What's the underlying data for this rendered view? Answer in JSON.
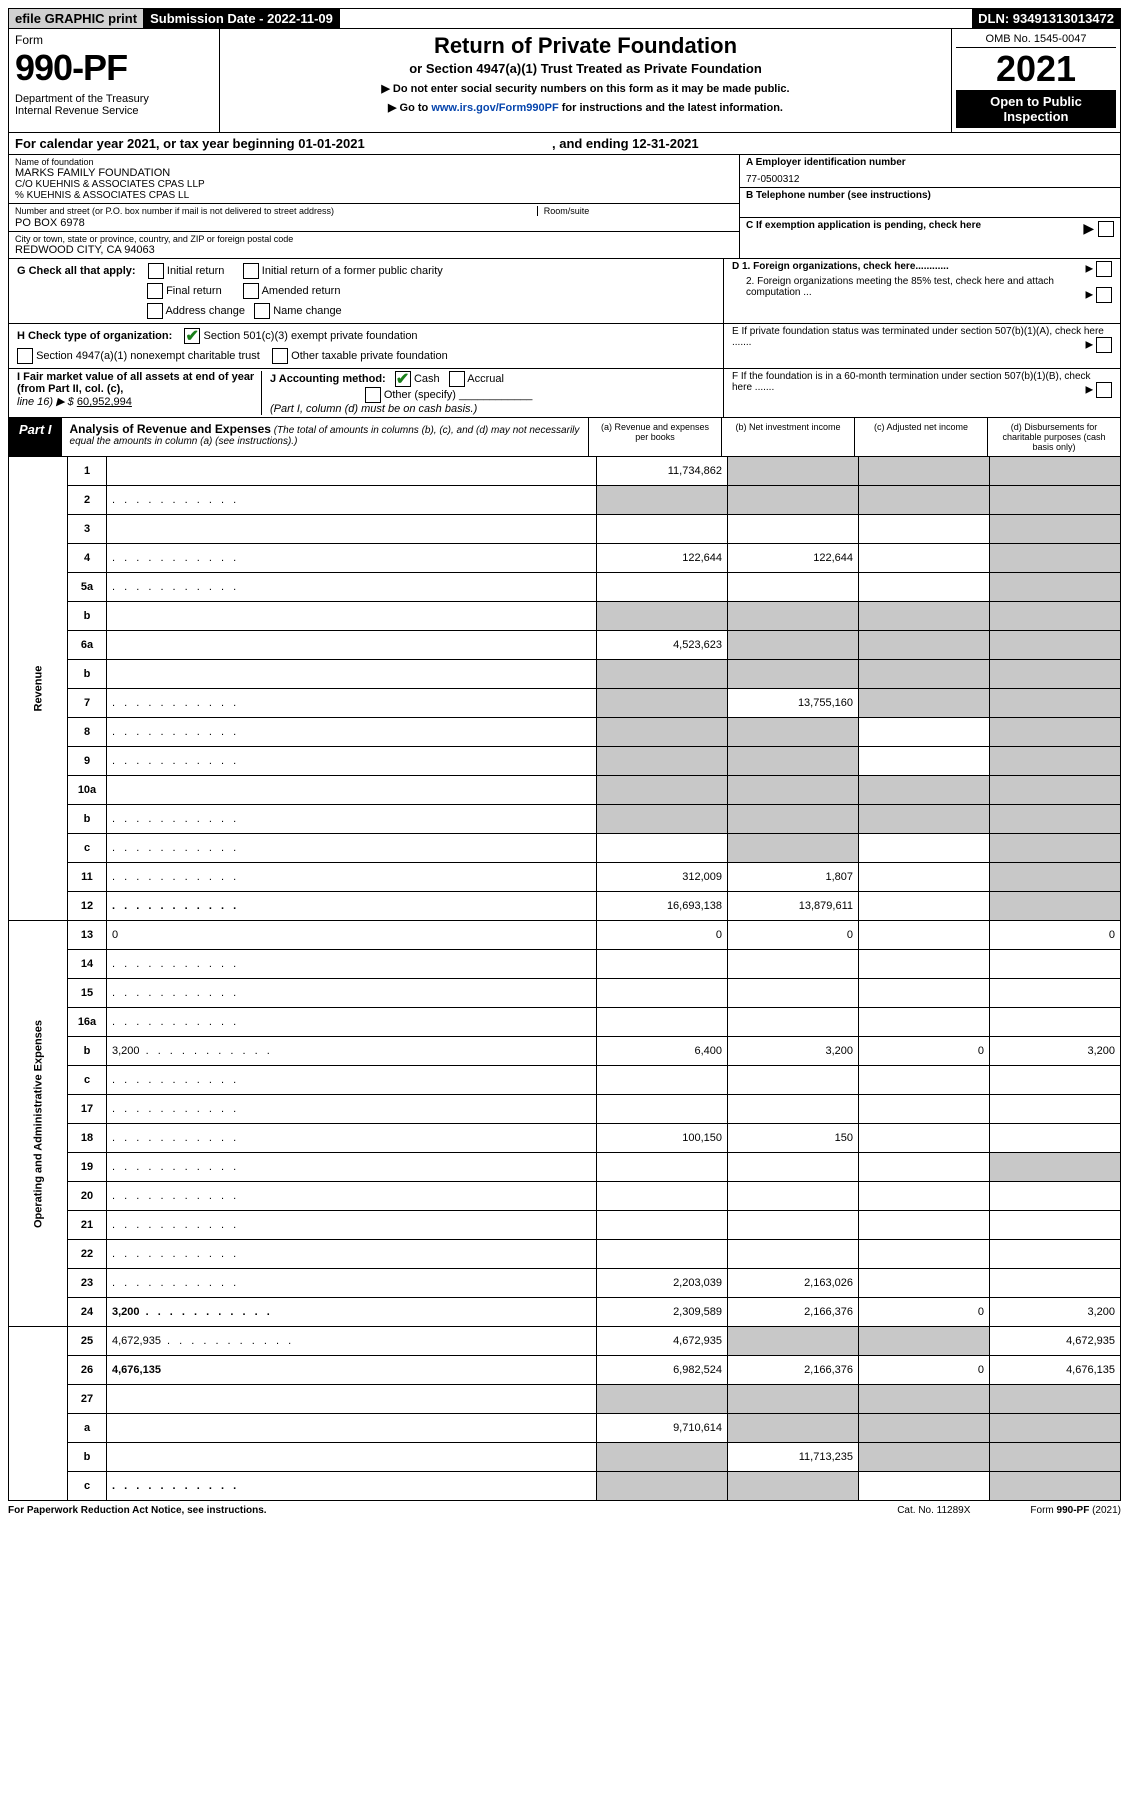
{
  "top": {
    "efile": "efile GRAPHIC print",
    "subdate": "Submission Date - 2022-11-09",
    "dln": "DLN: 93491313013472"
  },
  "header": {
    "form_word": "Form",
    "form_no": "990-PF",
    "dept": "Department of the Treasury\nInternal Revenue Service",
    "title": "Return of Private Foundation",
    "subtitle": "or Section 4947(a)(1) Trust Treated as Private Foundation",
    "note1": "▶ Do not enter social security numbers on this form as it may be made public.",
    "note2_pre": "▶ Go to ",
    "note2_link": "www.irs.gov/Form990PF",
    "note2_post": " for instructions and the latest information.",
    "omb": "OMB No. 1545-0047",
    "year": "2021",
    "open1": "Open to Public",
    "open2": "Inspection"
  },
  "caly": {
    "pre": "For calendar year 2021, or tax year beginning 01-01-2021",
    "end": ", and ending 12-31-2021"
  },
  "id": {
    "name_lbl": "Name of foundation",
    "name1": "MARKS FAMILY FOUNDATION",
    "name2": "C/O KUEHNIS & ASSOCIATES CPAS LLP",
    "name3": "% KUEHNIS & ASSOCIATES CPAS LL",
    "addr_lbl": "Number and street (or P.O. box number if mail is not delivered to street address)",
    "addr": "PO BOX 6978",
    "room_lbl": "Room/suite",
    "city_lbl": "City or town, state or province, country, and ZIP or foreign postal code",
    "city": "REDWOOD CITY, CA  94063",
    "a_lbl": "A Employer identification number",
    "ein": "77-0500312",
    "b_lbl": "B Telephone number (see instructions)",
    "c_lbl": "C If exemption application is pending, check here",
    "g_lbl": "G Check all that apply:",
    "g_initial": "Initial return",
    "g_initial_pub": "Initial return of a former public charity",
    "g_final": "Final return",
    "g_amended": "Amended return",
    "g_addr": "Address change",
    "g_name": "Name change",
    "d1": "D 1. Foreign organizations, check here............",
    "d2": "2. Foreign organizations meeting the 85% test, check here and attach computation ...",
    "h_lbl": "H Check type of organization:",
    "h_501": "Section 501(c)(3) exempt private foundation",
    "h_4947": "Section 4947(a)(1) nonexempt charitable trust",
    "h_other": "Other taxable private foundation",
    "e_lbl": "E  If private foundation status was terminated under section 507(b)(1)(A), check here .......",
    "i_lbl": "I Fair market value of all assets at end of year (from Part II, col. (c),",
    "i_line": "line 16) ▶ $",
    "i_val": "60,952,994",
    "j_lbl": "J Accounting method:",
    "j_cash": "Cash",
    "j_accrual": "Accrual",
    "j_other": "Other (specify)",
    "j_note": "(Part I, column (d) must be on cash basis.)",
    "f_lbl": "F  If the foundation is in a 60-month termination under section 507(b)(1)(B), check here ......."
  },
  "part1": {
    "tag": "Part I",
    "title": "Analysis of Revenue and Expenses",
    "note": "(The total of amounts in columns (b), (c), and (d) may not necessarily equal the amounts in column (a) (see instructions).)",
    "col_a": "(a)    Revenue and expenses per books",
    "col_b": "(b)    Net investment income",
    "col_c": "(c)    Adjusted net income",
    "col_d": "(d)    Disbursements for charitable purposes (cash basis only)"
  },
  "side": {
    "rev": "Revenue",
    "exp": "Operating and Administrative Expenses"
  },
  "rows": [
    {
      "n": "1",
      "d": "",
      "a": "11,734,862",
      "b": "",
      "c": "",
      "ga": false,
      "gb": true,
      "gc": true,
      "gd": true
    },
    {
      "n": "2",
      "d": "",
      "a": "",
      "b": "",
      "c": "",
      "ga": true,
      "gb": true,
      "gc": true,
      "gd": true,
      "dots": true
    },
    {
      "n": "3",
      "d": "",
      "a": "",
      "b": "",
      "c": "",
      "ga": false,
      "gb": false,
      "gc": false,
      "gd": true
    },
    {
      "n": "4",
      "d": "",
      "a": "122,644",
      "b": "122,644",
      "c": "",
      "ga": false,
      "gb": false,
      "gc": false,
      "gd": true,
      "dots": true
    },
    {
      "n": "5a",
      "d": "",
      "a": "",
      "b": "",
      "c": "",
      "ga": false,
      "gb": false,
      "gc": false,
      "gd": true,
      "dots": true
    },
    {
      "n": "b",
      "d": "",
      "a": "",
      "b": "",
      "c": "",
      "ga": true,
      "gb": true,
      "gc": true,
      "gd": true
    },
    {
      "n": "6a",
      "d": "",
      "a": "4,523,623",
      "b": "",
      "c": "",
      "ga": false,
      "gb": true,
      "gc": true,
      "gd": true
    },
    {
      "n": "b",
      "d": "",
      "a": "",
      "b": "",
      "c": "",
      "ga": true,
      "gb": true,
      "gc": true,
      "gd": true
    },
    {
      "n": "7",
      "d": "",
      "a": "",
      "b": "13,755,160",
      "c": "",
      "ga": true,
      "gb": false,
      "gc": true,
      "gd": true,
      "dots": true
    },
    {
      "n": "8",
      "d": "",
      "a": "",
      "b": "",
      "c": "",
      "ga": true,
      "gb": true,
      "gc": false,
      "gd": true,
      "dots": true
    },
    {
      "n": "9",
      "d": "",
      "a": "",
      "b": "",
      "c": "",
      "ga": true,
      "gb": true,
      "gc": false,
      "gd": true,
      "dots": true
    },
    {
      "n": "10a",
      "d": "",
      "a": "",
      "b": "",
      "c": "",
      "ga": true,
      "gb": true,
      "gc": true,
      "gd": true
    },
    {
      "n": "b",
      "d": "",
      "a": "",
      "b": "",
      "c": "",
      "ga": true,
      "gb": true,
      "gc": true,
      "gd": true,
      "dots": true
    },
    {
      "n": "c",
      "d": "",
      "a": "",
      "b": "",
      "c": "",
      "ga": false,
      "gb": true,
      "gc": false,
      "gd": true,
      "dots": true
    },
    {
      "n": "11",
      "d": "",
      "a": "312,009",
      "b": "1,807",
      "c": "",
      "ga": false,
      "gb": false,
      "gc": false,
      "gd": true,
      "dots": true
    },
    {
      "n": "12",
      "d": "",
      "a": "16,693,138",
      "b": "13,879,611",
      "c": "",
      "ga": false,
      "gb": false,
      "gc": false,
      "gd": true,
      "bold": true,
      "dots": true
    },
    {
      "n": "13",
      "d": "0",
      "a": "0",
      "b": "0",
      "c": "",
      "ga": false,
      "gb": false,
      "gc": false,
      "gd": false
    },
    {
      "n": "14",
      "d": "",
      "a": "",
      "b": "",
      "c": "",
      "ga": false,
      "gb": false,
      "gc": false,
      "gd": false,
      "dots": true
    },
    {
      "n": "15",
      "d": "",
      "a": "",
      "b": "",
      "c": "",
      "ga": false,
      "gb": false,
      "gc": false,
      "gd": false,
      "dots": true
    },
    {
      "n": "16a",
      "d": "",
      "a": "",
      "b": "",
      "c": "",
      "ga": false,
      "gb": false,
      "gc": false,
      "gd": false,
      "dots": true
    },
    {
      "n": "b",
      "d": "3,200",
      "a": "6,400",
      "b": "3,200",
      "c": "0",
      "ga": false,
      "gb": false,
      "gc": false,
      "gd": false,
      "dots": true
    },
    {
      "n": "c",
      "d": "",
      "a": "",
      "b": "",
      "c": "",
      "ga": false,
      "gb": false,
      "gc": false,
      "gd": false,
      "dots": true
    },
    {
      "n": "17",
      "d": "",
      "a": "",
      "b": "",
      "c": "",
      "ga": false,
      "gb": false,
      "gc": false,
      "gd": false,
      "dots": true
    },
    {
      "n": "18",
      "d": "",
      "a": "100,150",
      "b": "150",
      "c": "",
      "ga": false,
      "gb": false,
      "gc": false,
      "gd": false,
      "dots": true
    },
    {
      "n": "19",
      "d": "",
      "a": "",
      "b": "",
      "c": "",
      "ga": false,
      "gb": false,
      "gc": false,
      "gd": true,
      "dots": true
    },
    {
      "n": "20",
      "d": "",
      "a": "",
      "b": "",
      "c": "",
      "ga": false,
      "gb": false,
      "gc": false,
      "gd": false,
      "dots": true
    },
    {
      "n": "21",
      "d": "",
      "a": "",
      "b": "",
      "c": "",
      "ga": false,
      "gb": false,
      "gc": false,
      "gd": false,
      "dots": true
    },
    {
      "n": "22",
      "d": "",
      "a": "",
      "b": "",
      "c": "",
      "ga": false,
      "gb": false,
      "gc": false,
      "gd": false,
      "dots": true
    },
    {
      "n": "23",
      "d": "",
      "a": "2,203,039",
      "b": "2,163,026",
      "c": "",
      "ga": false,
      "gb": false,
      "gc": false,
      "gd": false,
      "dots": true
    },
    {
      "n": "24",
      "d": "3,200",
      "a": "2,309,589",
      "b": "2,166,376",
      "c": "0",
      "ga": false,
      "gb": false,
      "gc": false,
      "gd": false,
      "bold": true,
      "dots": true
    },
    {
      "n": "25",
      "d": "4,672,935",
      "a": "4,672,935",
      "b": "",
      "c": "",
      "ga": false,
      "gb": true,
      "gc": true,
      "gd": false,
      "dots": true
    },
    {
      "n": "26",
      "d": "4,676,135",
      "a": "6,982,524",
      "b": "2,166,376",
      "c": "0",
      "ga": false,
      "gb": false,
      "gc": false,
      "gd": false,
      "bold": true
    },
    {
      "n": "27",
      "d": "",
      "a": "",
      "b": "",
      "c": "",
      "ga": true,
      "gb": true,
      "gc": true,
      "gd": true
    },
    {
      "n": "a",
      "d": "",
      "a": "9,710,614",
      "b": "",
      "c": "",
      "ga": false,
      "gb": true,
      "gc": true,
      "gd": true,
      "bold": true
    },
    {
      "n": "b",
      "d": "",
      "a": "",
      "b": "11,713,235",
      "c": "",
      "ga": true,
      "gb": false,
      "gc": true,
      "gd": true,
      "bold": true
    },
    {
      "n": "c",
      "d": "",
      "a": "",
      "b": "",
      "c": "",
      "ga": true,
      "gb": true,
      "gc": false,
      "gd": true,
      "bold": true,
      "dots": true
    }
  ],
  "footer": {
    "left": "For Paperwork Reduction Act Notice, see instructions.",
    "mid": "Cat. No. 11289X",
    "right": "Form 990-PF (2021)"
  }
}
